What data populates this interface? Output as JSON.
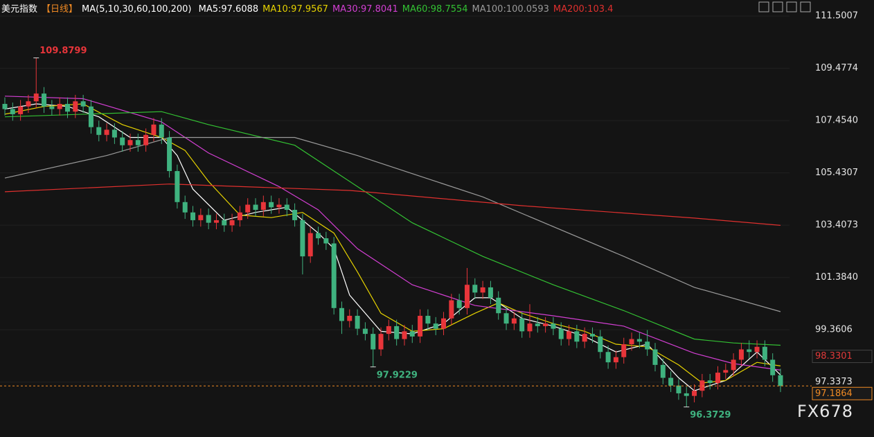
{
  "chart_data": {
    "type": "candlestick",
    "title": "美元指数",
    "period": "【日线】",
    "indicator": "MA(5,10,30,60,100,200)",
    "watermark": "FX678",
    "up_color": "#e8353a",
    "down_color": "#3fb27f",
    "ylim": [
      95.21,
      112.12
    ],
    "yticks": [
      111.5007,
      109.4774,
      {
        "value": 107.454,
        "label": "107.4540"
      },
      105.4307,
      103.4073,
      {
        "value": 101.384,
        "label": "101.3840"
      },
      99.3606,
      97.3373
    ],
    "grid": true,
    "price_tags": [
      98.3301,
      97.1864
    ],
    "annotations": [
      109.8799,
      97.9229,
      96.3729
    ],
    "open": [
      108.1,
      107.9,
      107.7,
      108.0,
      108.2,
      108.5,
      108.0,
      107.9,
      108.1,
      107.8,
      108.2,
      108.0,
      107.2,
      106.9,
      107.1,
      106.8,
      106.5,
      106.7,
      106.5,
      106.9,
      107.3,
      106.8,
      105.5,
      104.3,
      103.9,
      103.6,
      103.8,
      103.5,
      103.6,
      103.4,
      103.6,
      103.9,
      104.2,
      104.0,
      104.3,
      104.1,
      104.2,
      104.0,
      103.6,
      102.2,
      103.1,
      102.9,
      102.7,
      100.2,
      99.7,
      99.9,
      99.4,
      99.2,
      98.6,
      99.2,
      99.5,
      99.0,
      99.3,
      99.1,
      99.9,
      99.6,
      99.4,
      99.8,
      100.5,
      100.2,
      101.1,
      100.8,
      101.0,
      100.6,
      100.0,
      99.6,
      99.8,
      99.3,
      99.6,
      99.5,
      99.6,
      99.4,
      99.0,
      99.3,
      98.9,
      99.2,
      99.1,
      98.5,
      98.1,
      98.3,
      98.8,
      99.0,
      98.9,
      98.6,
      98.0,
      97.5,
      97.2,
      96.9,
      96.8,
      97.0,
      97.4,
      97.3,
      97.7,
      97.8,
      98.2,
      98.6,
      98.5,
      98.7,
      98.2,
      97.6
    ],
    "high": [
      108.35,
      108.15,
      108.25,
      108.45,
      109.8799,
      108.75,
      108.25,
      108.35,
      108.35,
      108.45,
      108.45,
      108.25,
      107.45,
      107.35,
      107.35,
      107.05,
      106.95,
      106.95,
      107.15,
      107.55,
      107.55,
      107.05,
      105.75,
      104.55,
      104.15,
      104.05,
      104.05,
      103.85,
      103.85,
      103.85,
      104.15,
      104.45,
      104.45,
      104.55,
      104.55,
      104.45,
      104.45,
      104.25,
      103.85,
      103.35,
      103.35,
      103.15,
      102.95,
      100.45,
      100.15,
      100.15,
      99.65,
      99.45,
      99.45,
      99.75,
      99.75,
      99.55,
      99.55,
      100.15,
      100.15,
      99.85,
      100.05,
      100.75,
      100.75,
      101.75,
      101.35,
      101.25,
      101.25,
      100.85,
      100.25,
      100.05,
      100.05,
      100.35,
      99.85,
      99.85,
      99.85,
      99.65,
      99.55,
      99.55,
      99.45,
      99.45,
      99.35,
      98.75,
      98.55,
      99.05,
      99.25,
      99.25,
      99.35,
      98.85,
      98.25,
      97.75,
      97.45,
      97.15,
      97.25,
      97.65,
      97.65,
      97.95,
      98.05,
      98.45,
      98.85,
      98.95,
      98.95,
      98.95,
      98.45,
      97.85
    ],
    "low": [
      107.65,
      107.45,
      107.45,
      107.75,
      107.95,
      107.75,
      107.65,
      107.65,
      107.55,
      107.55,
      107.75,
      106.95,
      106.65,
      106.65,
      106.55,
      106.25,
      106.25,
      106.25,
      106.25,
      106.65,
      106.55,
      105.25,
      104.05,
      103.65,
      103.35,
      103.35,
      103.25,
      103.25,
      103.15,
      103.15,
      103.35,
      103.65,
      103.75,
      103.75,
      103.85,
      103.85,
      103.75,
      103.35,
      101.5,
      101.95,
      102.65,
      102.45,
      99.95,
      99.2,
      99.45,
      99.15,
      98.95,
      97.9229,
      98.35,
      98.95,
      98.75,
      98.75,
      98.85,
      98.85,
      99.35,
      99.15,
      99.15,
      99.55,
      99.95,
      99.95,
      100.55,
      100.55,
      100.35,
      99.75,
      99.35,
      99.35,
      99.05,
      99.05,
      99.25,
      99.25,
      99.15,
      98.75,
      98.75,
      98.65,
      98.65,
      98.85,
      98.25,
      97.85,
      97.85,
      98.05,
      98.55,
      98.65,
      98.35,
      97.75,
      97.25,
      96.95,
      96.65,
      96.3729,
      96.55,
      96.75,
      97.05,
      97.05,
      97.45,
      97.55,
      97.95,
      98.25,
      98.25,
      97.95,
      97.35,
      96.95
    ],
    "close": [
      107.9,
      107.7,
      108.0,
      108.2,
      108.5,
      108.0,
      107.9,
      108.1,
      107.8,
      108.2,
      108.0,
      107.2,
      106.9,
      107.1,
      106.8,
      106.5,
      106.7,
      106.5,
      106.9,
      107.3,
      106.8,
      105.5,
      104.3,
      103.9,
      103.6,
      103.8,
      103.5,
      103.6,
      103.4,
      103.6,
      103.9,
      104.2,
      104.0,
      104.3,
      104.1,
      104.2,
      104.0,
      103.6,
      102.2,
      103.1,
      102.9,
      102.7,
      100.2,
      99.7,
      99.9,
      99.4,
      99.2,
      98.6,
      99.2,
      99.5,
      99.0,
      99.3,
      99.1,
      99.9,
      99.6,
      99.4,
      99.8,
      100.5,
      100.2,
      101.1,
      100.8,
      101.0,
      100.6,
      100.0,
      99.6,
      99.8,
      99.3,
      99.6,
      99.5,
      99.6,
      99.4,
      99.0,
      99.3,
      98.9,
      99.2,
      99.1,
      98.5,
      98.1,
      98.3,
      98.8,
      99.0,
      98.9,
      98.6,
      98.0,
      97.5,
      97.2,
      96.9,
      96.8,
      97.0,
      97.4,
      97.3,
      97.7,
      97.8,
      98.2,
      98.6,
      98.5,
      98.7,
      98.2,
      97.6,
      97.1864
    ],
    "series": [
      {
        "name": "MA5:97.6088",
        "color": "#ffffff",
        "x": [
          0,
          4,
          8,
          12,
          16,
          20,
          22,
          24,
          28,
          32,
          36,
          38,
          40,
          42,
          44,
          48,
          52,
          56,
          60,
          62,
          66,
          70,
          74,
          78,
          82,
          86,
          88,
          92,
          96,
          99
        ],
        "values": [
          107.9,
          108.1,
          108.0,
          107.6,
          106.8,
          106.8,
          106.1,
          104.8,
          103.6,
          103.9,
          104.1,
          103.6,
          103.1,
          102.5,
          100.7,
          99.3,
          99.2,
          99.6,
          100.6,
          100.6,
          99.8,
          99.5,
          99.1,
          98.5,
          98.8,
          97.5,
          97.0,
          97.4,
          98.5,
          97.61
        ]
      },
      {
        "name": "MA10:97.9567",
        "color": "#e6d200",
        "x": [
          0,
          5,
          10,
          15,
          20,
          23,
          26,
          30,
          34,
          38,
          42,
          45,
          48,
          52,
          56,
          60,
          63,
          66,
          70,
          74,
          78,
          82,
          86,
          89,
          92,
          96,
          99
        ],
        "values": [
          107.7,
          108.0,
          108.1,
          107.3,
          106.8,
          106.3,
          105.1,
          103.8,
          103.7,
          103.9,
          103.1,
          101.6,
          100.0,
          99.3,
          99.4,
          100.0,
          100.4,
          100.0,
          99.6,
          99.3,
          98.8,
          98.7,
          98.0,
          97.3,
          97.4,
          98.1,
          97.96
        ]
      },
      {
        "name": "MA30:97.8041",
        "color": "#d33fd3",
        "x": [
          0,
          10,
          20,
          26,
          35,
          40,
          45,
          52,
          60,
          70,
          79,
          88,
          93,
          99
        ],
        "values": [
          108.4,
          108.3,
          107.4,
          106.2,
          104.9,
          104.0,
          102.5,
          101.1,
          100.3,
          99.9,
          99.5,
          98.45,
          98.05,
          97.8
        ]
      },
      {
        "name": "MA60:98.7554",
        "color": "#33c233",
        "x": [
          0,
          20,
          26,
          37,
          45,
          52,
          61,
          70,
          79,
          88,
          93,
          99
        ],
        "values": [
          107.6,
          107.8,
          107.3,
          106.5,
          104.9,
          103.5,
          102.2,
          101.1,
          100.1,
          99.0,
          98.85,
          98.76
        ]
      },
      {
        "name": "MA100:100.0593",
        "color": "#9a9a9a",
        "x": [
          0,
          13,
          21,
          37,
          45,
          61,
          79,
          88,
          99
        ],
        "values": [
          105.23,
          106.1,
          106.8,
          106.8,
          106.1,
          104.5,
          102.2,
          101.0,
          100.06
        ]
      },
      {
        "name": "MA200:103.4",
        "color": "#e0302e",
        "x": [
          0,
          21,
          44,
          66,
          88,
          99
        ],
        "values": [
          104.7,
          105.0,
          104.75,
          104.16,
          103.68,
          103.4
        ]
      }
    ]
  }
}
